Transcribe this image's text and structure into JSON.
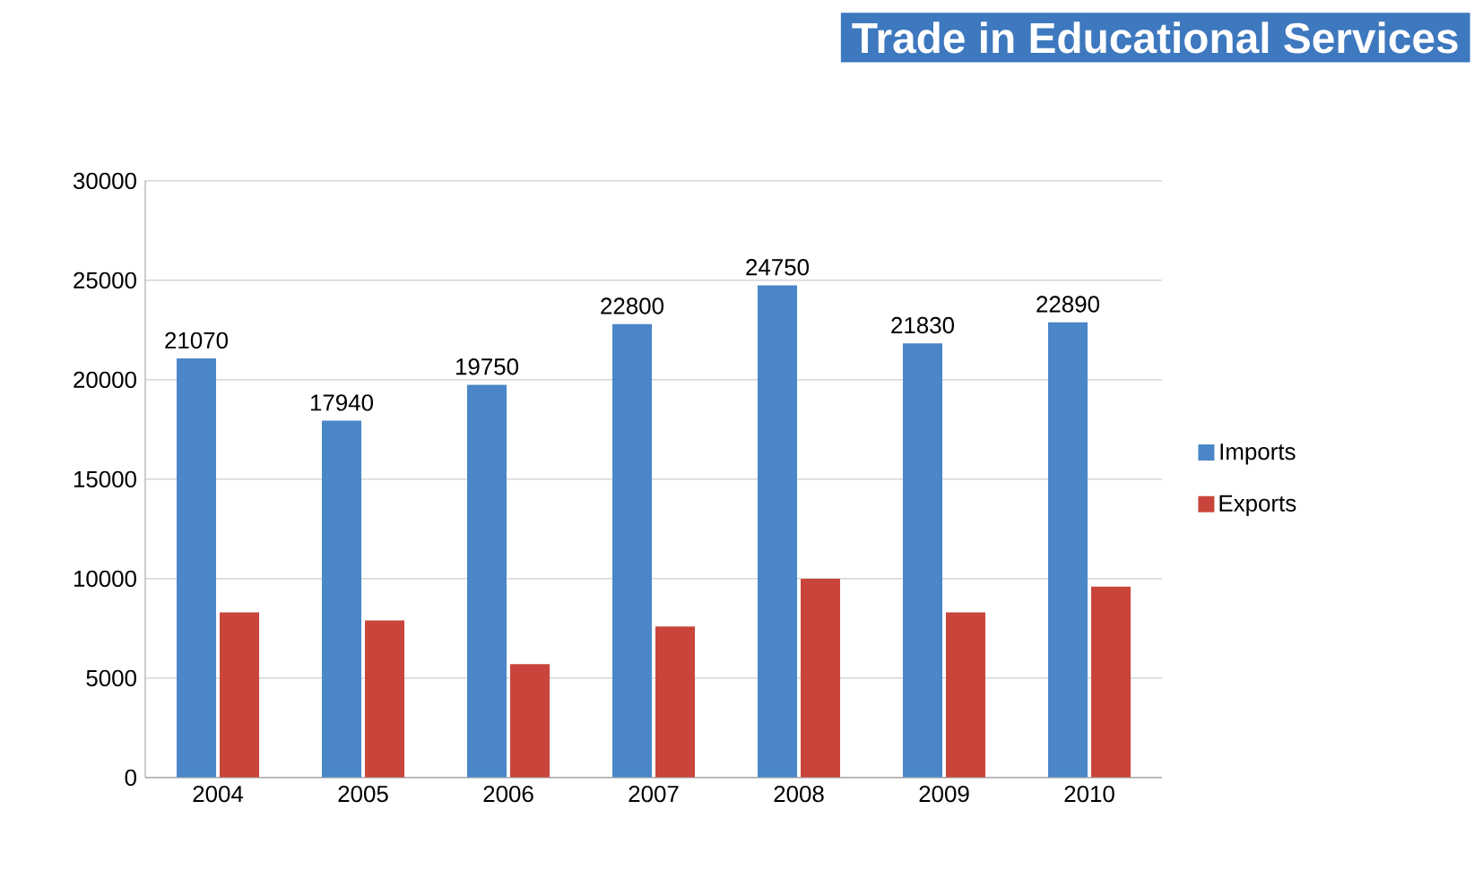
{
  "chart_data": {
    "type": "bar",
    "title": "Trade in Educational Services",
    "categories": [
      "2004",
      "2005",
      "2006",
      "2007",
      "2008",
      "2009",
      "2010"
    ],
    "series": [
      {
        "name": "Imports",
        "color": "#4a86c8",
        "values": [
          21070,
          17940,
          19750,
          22800,
          24750,
          21830,
          22890
        ],
        "value_labels": [
          "21070",
          "17940",
          "19750",
          "22800",
          "24750",
          "21830",
          "22890"
        ]
      },
      {
        "name": "Exports",
        "color": "#c9453b",
        "values": [
          8300,
          7900,
          5700,
          7600,
          10000,
          8300,
          9600
        ]
      }
    ],
    "ylim": [
      0,
      30000
    ],
    "yticks": [
      0,
      5000,
      10000,
      15000,
      20000,
      25000,
      30000
    ],
    "grid": "y",
    "legend": "right"
  }
}
